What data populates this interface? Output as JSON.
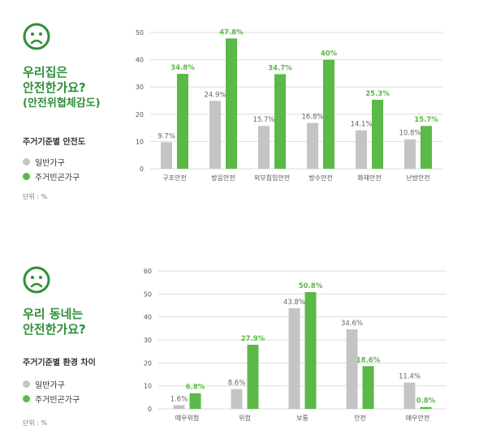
{
  "colors": {
    "general": "#c4c4c4",
    "poor": "#5ab947",
    "title_green": "#2f8f3a",
    "grid": "#dddddd"
  },
  "top": {
    "icon": "sad-face-icon",
    "title_line1": "우리집은",
    "title_line2": "안전한가요?",
    "title_line3": "(안전위협체감도)",
    "subtitle": "주거기준별 안전도",
    "legend": [
      "일반가구",
      "주거빈곤가구"
    ],
    "unit": "단위 : %"
  },
  "bottom": {
    "icon": "sad-face-icon",
    "title_line1": "우리 동네는",
    "title_line2": "안전한가요?",
    "subtitle": "주거기준별 환경 차이",
    "legend": [
      "일반가구",
      "주거빈곤가구"
    ],
    "unit": "단위 : %"
  },
  "chart_data": [
    {
      "type": "bar",
      "categories": [
        "구조안전",
        "방음안전",
        "외부침입안전",
        "방수안전",
        "화재안전",
        "난방안전"
      ],
      "series": [
        {
          "name": "일반가구",
          "values": [
            9.7,
            24.9,
            15.7,
            16.8,
            14.1,
            10.8
          ]
        },
        {
          "name": "주거빈곤가구",
          "values": [
            34.8,
            47.8,
            34.7,
            40,
            25.3,
            15.7
          ]
        }
      ],
      "value_labels": {
        "일반가구": [
          "9.7%",
          "24.9%",
          "15.7%",
          "16.8%",
          "14.1%",
          "10.8%"
        ],
        "주거빈곤가구": [
          "34.8%",
          "47.8%",
          "34.7%",
          "40%",
          "25.3%",
          "15.7%"
        ]
      },
      "yticks": [
        "0",
        "10",
        "20",
        "30",
        "40",
        "50"
      ],
      "ylim": [
        0,
        50
      ],
      "grid": true
    },
    {
      "type": "bar",
      "categories": [
        "매우위험",
        "위험",
        "보통",
        "안전",
        "매우안전"
      ],
      "series": [
        {
          "name": "일반가구",
          "values": [
            1.6,
            8.6,
            43.8,
            34.6,
            11.4
          ]
        },
        {
          "name": "주거빈곤가구",
          "values": [
            6.8,
            27.9,
            50.8,
            18.6,
            0.8
          ]
        }
      ],
      "value_labels": {
        "일반가구": [
          "1.6%",
          "8.6%",
          "43.8%",
          "34.6%",
          "11.4%"
        ],
        "주거빈곤가구": [
          "6.8%",
          "27.9%",
          "50.8%",
          "18.6%",
          "0.8%"
        ]
      },
      "yticks": [
        "0",
        "10",
        "20",
        "30",
        "40",
        "50",
        "60"
      ],
      "ylim": [
        0,
        60
      ],
      "grid": true
    }
  ]
}
